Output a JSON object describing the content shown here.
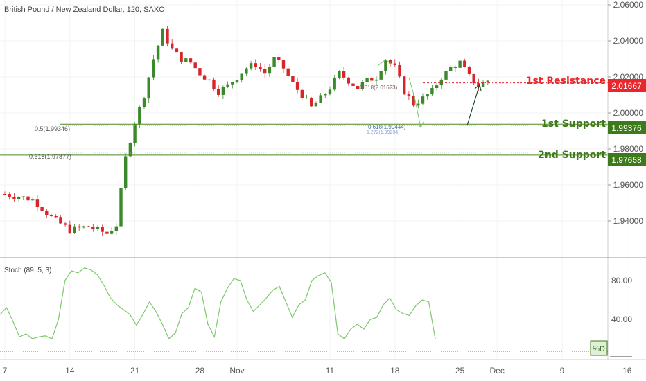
{
  "colors": {
    "background": "#ffffff",
    "bull": "#3a8a2a",
    "bear": "#d7262b",
    "resistance": "#e8262c",
    "support": "#4b8a1f",
    "support_label_bg": "#3d7a1a",
    "stoch_line": "#7cc86b",
    "axis_text": "#555555",
    "fib_text": "#4a6ea8",
    "arrow": "#1e4d2b"
  },
  "header": {
    "title": "British Pound / New Zealand Dollar, 120, SAXO"
  },
  "levels": {
    "resistance": {
      "label": "1st Resistance",
      "value": "2.01667"
    },
    "support1": {
      "label": "1st Support",
      "value": "1.99376"
    },
    "support2": {
      "label": "2nd Support",
      "value": "1.97658"
    }
  },
  "fib_labels": {
    "left_05": "0.5(1.99346)",
    "left_0618": "0.618(1.97877)",
    "right_0618": "0.618(1.99444)",
    "right_1272": "1.272(1.99294)",
    "top_0618": "0.618(2.01623)"
  },
  "stoch": {
    "label": "Stoch (89, 5, 3)",
    "badge": "%D"
  },
  "chart_data": {
    "type": "line",
    "title": "British Pound / New Zealand Dollar, 120, SAXO",
    "price": {
      "ylim": [
        1.922,
        2.062
      ],
      "yticks": [
        "2.06000",
        "2.04000",
        "2.02000",
        "2.00000",
        "1.98000",
        "1.96000",
        "1.94000"
      ],
      "anchors": [
        [
          0,
          1.955
        ],
        [
          3,
          1.952
        ],
        [
          5,
          1.942
        ],
        [
          7,
          1.935
        ],
        [
          9,
          1.937
        ],
        [
          11,
          1.933
        ],
        [
          12,
          1.938
        ],
        [
          13,
          1.975
        ],
        [
          14,
          1.995
        ],
        [
          15,
          2.01
        ],
        [
          16,
          2.03
        ],
        [
          17,
          2.045
        ],
        [
          18,
          2.035
        ],
        [
          19,
          2.03
        ],
        [
          20,
          2.028
        ],
        [
          21,
          2.022
        ],
        [
          22,
          2.018
        ],
        [
          23,
          2.012
        ],
        [
          24,
          2.015
        ],
        [
          25,
          2.02
        ],
        [
          26,
          2.025
        ],
        [
          27,
          2.027
        ],
        [
          28,
          2.022
        ],
        [
          29,
          2.03
        ],
        [
          30,
          2.025
        ],
        [
          31,
          2.016
        ],
        [
          32,
          2.01
        ],
        [
          33,
          2.003
        ],
        [
          34,
          2.008
        ],
        [
          35,
          2.014
        ],
        [
          36,
          2.022
        ],
        [
          37,
          2.018
        ],
        [
          38,
          2.014
        ],
        [
          39,
          2.018
        ],
        [
          40,
          2.02
        ],
        [
          41,
          2.03
        ],
        [
          42,
          2.025
        ],
        [
          43,
          2.012
        ],
        [
          44,
          2.005
        ],
        [
          45,
          2.008
        ],
        [
          46,
          2.012
        ],
        [
          47,
          2.02
        ],
        [
          48,
          2.025
        ],
        [
          49,
          2.028
        ],
        [
          50,
          2.02
        ],
        [
          51,
          2.015
        ],
        [
          52,
          2.018
        ],
        [
          52.4,
          2.005
        ]
      ],
      "levels": [
        2.01667,
        1.99376,
        1.97658
      ]
    },
    "stochastic": {
      "name": "Stoch (89, 5, 3)",
      "ylim": [
        0,
        100
      ],
      "yticks": [
        "80.00",
        "40.00"
      ],
      "lower_band": 20,
      "values": [
        [
          0,
          45
        ],
        [
          1,
          52
        ],
        [
          2,
          38
        ],
        [
          3,
          22
        ],
        [
          4,
          25
        ],
        [
          5,
          20
        ],
        [
          6,
          22
        ],
        [
          7,
          23
        ],
        [
          8,
          20
        ],
        [
          9,
          40
        ],
        [
          10,
          80
        ],
        [
          11,
          90
        ],
        [
          12,
          88
        ],
        [
          13,
          93
        ],
        [
          14,
          91
        ],
        [
          15,
          86
        ],
        [
          16,
          75
        ],
        [
          17,
          62
        ],
        [
          18,
          55
        ],
        [
          19,
          50
        ],
        [
          20,
          45
        ],
        [
          21,
          34
        ],
        [
          22,
          45
        ],
        [
          23,
          58
        ],
        [
          24,
          48
        ],
        [
          25,
          35
        ],
        [
          26,
          20
        ],
        [
          27,
          26
        ],
        [
          28,
          46
        ],
        [
          29,
          52
        ],
        [
          30,
          72
        ],
        [
          31,
          68
        ],
        [
          32,
          35
        ],
        [
          33,
          22
        ],
        [
          34,
          58
        ],
        [
          35,
          72
        ],
        [
          36,
          82
        ],
        [
          37,
          80
        ],
        [
          38,
          60
        ],
        [
          39,
          48
        ],
        [
          40,
          55
        ],
        [
          41,
          62
        ],
        [
          42,
          70
        ],
        [
          43,
          74
        ],
        [
          44,
          58
        ],
        [
          45,
          42
        ],
        [
          46,
          55
        ],
        [
          47,
          60
        ],
        [
          48,
          80
        ],
        [
          49,
          85
        ],
        [
          50,
          88
        ],
        [
          51,
          78
        ],
        [
          52,
          25
        ],
        [
          53,
          20
        ],
        [
          54,
          30
        ],
        [
          55,
          35
        ],
        [
          56,
          30
        ],
        [
          57,
          40
        ],
        [
          58,
          42
        ],
        [
          59,
          55
        ],
        [
          60,
          62
        ],
        [
          61,
          50
        ],
        [
          62,
          46
        ],
        [
          63,
          44
        ],
        [
          64,
          54
        ],
        [
          65,
          60
        ],
        [
          66,
          58
        ],
        [
          67,
          20
        ]
      ]
    },
    "x_ticks": [
      "7",
      "14",
      "21",
      "28",
      "Nov",
      "11",
      "18",
      "25",
      "Dec",
      "9",
      "16"
    ]
  }
}
